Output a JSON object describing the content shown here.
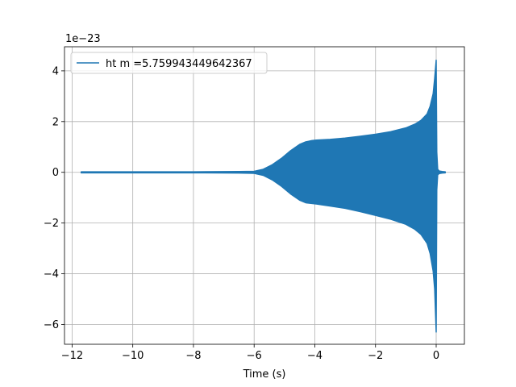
{
  "chart_data": {
    "type": "line",
    "title": "",
    "xlabel": "Time (s)",
    "ylabel": "",
    "y_scale_label": "1e−23",
    "xlim": [
      -12.25,
      0.93
    ],
    "ylim": [
      -6.78,
      4.95
    ],
    "x_ticks": [
      -12,
      -10,
      -8,
      -6,
      -4,
      -2,
      0
    ],
    "x_tick_labels": [
      "−12",
      "−10",
      "−8",
      "−6",
      "−4",
      "−2",
      "0"
    ],
    "y_ticks": [
      -6,
      -4,
      -2,
      0,
      2,
      4
    ],
    "y_tick_labels": [
      "−6",
      "−4",
      "−2",
      "0",
      "2",
      "4"
    ],
    "grid": true,
    "legend_position": "upper-left",
    "series": [
      {
        "name": "ht m =5.759943449642367",
        "color": "#1f77b4",
        "style": "densely-oscillating strain envelope",
        "x": [
          -11.7,
          -10.0,
          -8.0,
          -6.5,
          -6.0,
          -5.7,
          -5.4,
          -5.1,
          -4.8,
          -4.5,
          -4.3,
          -4.1,
          -3.95,
          -3.5,
          -3.0,
          -2.5,
          -2.0,
          -1.5,
          -1.0,
          -0.7,
          -0.5,
          -0.3,
          -0.2,
          -0.1,
          -0.05,
          0.0,
          0.02,
          0.05,
          0.1,
          0.2,
          0.3
        ],
        "upper": [
          0.02,
          0.02,
          0.02,
          0.03,
          0.04,
          0.12,
          0.3,
          0.55,
          0.85,
          1.1,
          1.2,
          1.25,
          1.27,
          1.3,
          1.35,
          1.42,
          1.5,
          1.6,
          1.75,
          1.9,
          2.05,
          2.3,
          2.6,
          3.1,
          3.7,
          4.42,
          0.8,
          0.12,
          0.05,
          0.03,
          0.02
        ],
        "lower": [
          -0.02,
          -0.02,
          -0.02,
          -0.03,
          -0.04,
          -0.12,
          -0.3,
          -0.55,
          -0.85,
          -1.1,
          -1.2,
          -1.23,
          -1.25,
          -1.33,
          -1.42,
          -1.55,
          -1.7,
          -1.85,
          -2.05,
          -2.25,
          -2.45,
          -2.8,
          -3.2,
          -3.9,
          -4.6,
          -6.3,
          -0.7,
          -0.1,
          -0.05,
          -0.03,
          -0.02
        ]
      }
    ]
  }
}
